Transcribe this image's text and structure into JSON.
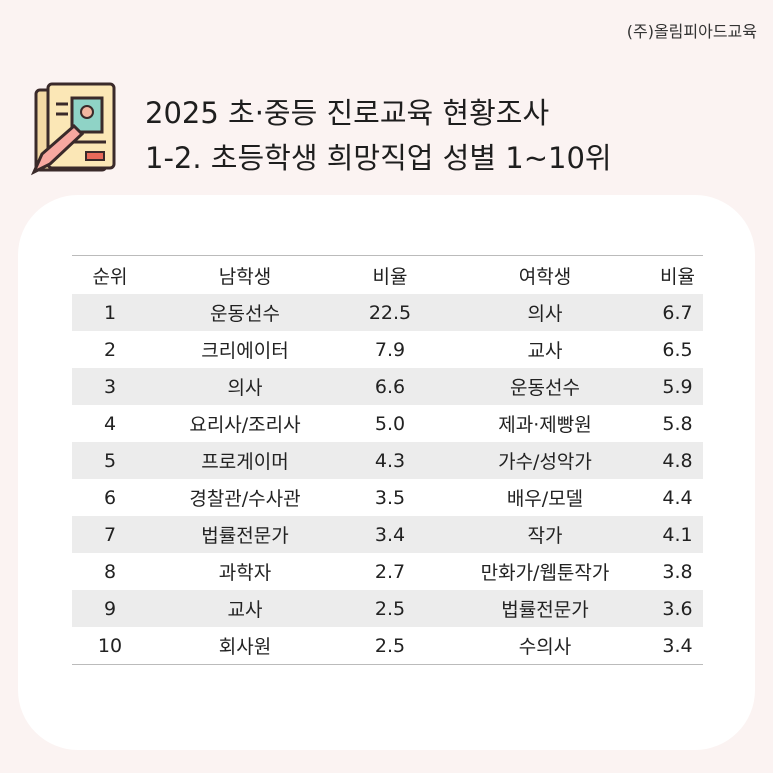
{
  "brand": "(주)올림피아드교육",
  "title": {
    "line1": "2025 초·중등 진로교육 현황조사",
    "line2": "1-2. 초등학생 희망직업 성별 1~10위"
  },
  "table": {
    "headers": [
      "순위",
      "남학생",
      "비율",
      "여학생",
      "비율"
    ],
    "rows": [
      [
        "1",
        "운동선수",
        "22.5",
        "의사",
        "6.7"
      ],
      [
        "2",
        "크리에이터",
        "7.9",
        "교사",
        "6.5"
      ],
      [
        "3",
        "의사",
        "6.6",
        "운동선수",
        "5.9"
      ],
      [
        "4",
        "요리사/조리사",
        "5.0",
        "제과·제빵원",
        "5.8"
      ],
      [
        "5",
        "프로게이머",
        "4.3",
        "가수/성악가",
        "4.8"
      ],
      [
        "6",
        "경찰관/수사관",
        "3.5",
        "배우/모델",
        "4.4"
      ],
      [
        "7",
        "법률전문가",
        "3.4",
        "작가",
        "4.1"
      ],
      [
        "8",
        "과학자",
        "2.7",
        "만화가/웹툰작가",
        "3.8"
      ],
      [
        "9",
        "교사",
        "2.5",
        "법률전문가",
        "3.6"
      ],
      [
        "10",
        "회사원",
        "2.5",
        "수의사",
        "3.4"
      ]
    ]
  }
}
